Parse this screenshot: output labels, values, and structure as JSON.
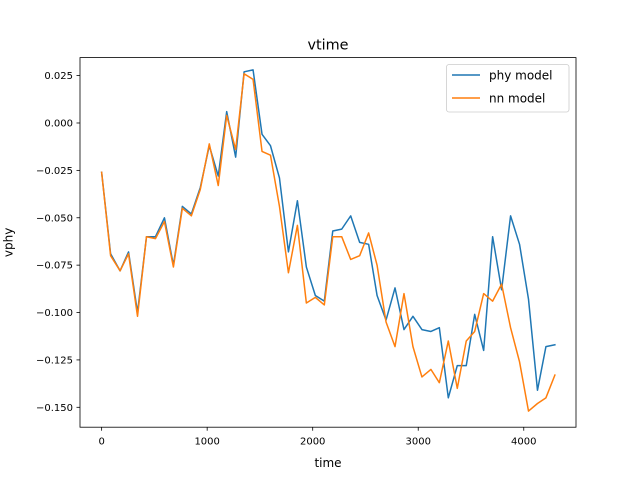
{
  "chart_data": {
    "type": "line",
    "title": "vtime",
    "xlabel": "time",
    "ylabel": "vphy",
    "xlim": [
      -205,
      4495
    ],
    "ylim": [
      -0.1605,
      0.0345
    ],
    "xticks": [
      0,
      1000,
      2000,
      3000,
      4000
    ],
    "xtick_labels": [
      "0",
      "1000",
      "2000",
      "3000",
      "4000"
    ],
    "yticks": [
      0.025,
      0.0,
      -0.025,
      -0.05,
      -0.075,
      -0.1,
      -0.125,
      -0.15
    ],
    "ytick_labels": [
      "0.025",
      "0.000",
      "−0.025",
      "−0.050",
      "−0.075",
      "−0.100",
      "−0.125",
      "−0.150"
    ],
    "grid": false,
    "legend_position": "top-right",
    "x": [
      0,
      85,
      175,
      255,
      340,
      425,
      510,
      595,
      680,
      765,
      850,
      935,
      1020,
      1105,
      1185,
      1270,
      1350,
      1435,
      1520,
      1600,
      1685,
      1770,
      1855,
      1940,
      2025,
      2110,
      2190,
      2275,
      2360,
      2445,
      2530,
      2610,
      2695,
      2780,
      2865,
      2950,
      3035,
      3120,
      3200,
      3285,
      3370,
      3455,
      3535,
      3620,
      3705,
      3790,
      3875,
      3960,
      4045,
      4130,
      4210,
      4295
    ],
    "series": [
      {
        "name": "phy model",
        "color": "#1f77b4",
        "values": [
          -0.026,
          -0.069,
          -0.078,
          -0.068,
          -0.1,
          -0.06,
          -0.06,
          -0.05,
          -0.075,
          -0.044,
          -0.048,
          -0.034,
          -0.012,
          -0.028,
          0.006,
          -0.018,
          0.027,
          0.028,
          -0.006,
          -0.012,
          -0.029,
          -0.068,
          -0.041,
          -0.076,
          -0.091,
          -0.094,
          -0.057,
          -0.056,
          -0.049,
          -0.063,
          -0.064,
          -0.091,
          -0.104,
          -0.087,
          -0.109,
          -0.102,
          -0.109,
          -0.11,
          -0.108,
          -0.145,
          -0.128,
          -0.128,
          -0.101,
          -0.12,
          -0.06,
          -0.088,
          -0.049,
          -0.064,
          -0.093,
          -0.141,
          -0.118,
          -0.117
        ]
      },
      {
        "name": "nn model",
        "color": "#ff7f0e",
        "values": [
          -0.026,
          -0.07,
          -0.078,
          -0.069,
          -0.102,
          -0.06,
          -0.061,
          -0.052,
          -0.076,
          -0.045,
          -0.049,
          -0.035,
          -0.011,
          -0.033,
          0.004,
          -0.014,
          0.026,
          0.023,
          -0.015,
          -0.017,
          -0.044,
          -0.079,
          -0.054,
          -0.095,
          -0.092,
          -0.096,
          -0.06,
          -0.06,
          -0.072,
          -0.07,
          -0.058,
          -0.075,
          -0.105,
          -0.118,
          -0.09,
          -0.118,
          -0.134,
          -0.13,
          -0.137,
          -0.115,
          -0.14,
          -0.115,
          -0.11,
          -0.09,
          -0.094,
          -0.085,
          -0.108,
          -0.126,
          -0.152,
          -0.148,
          -0.145,
          -0.133
        ]
      }
    ]
  }
}
